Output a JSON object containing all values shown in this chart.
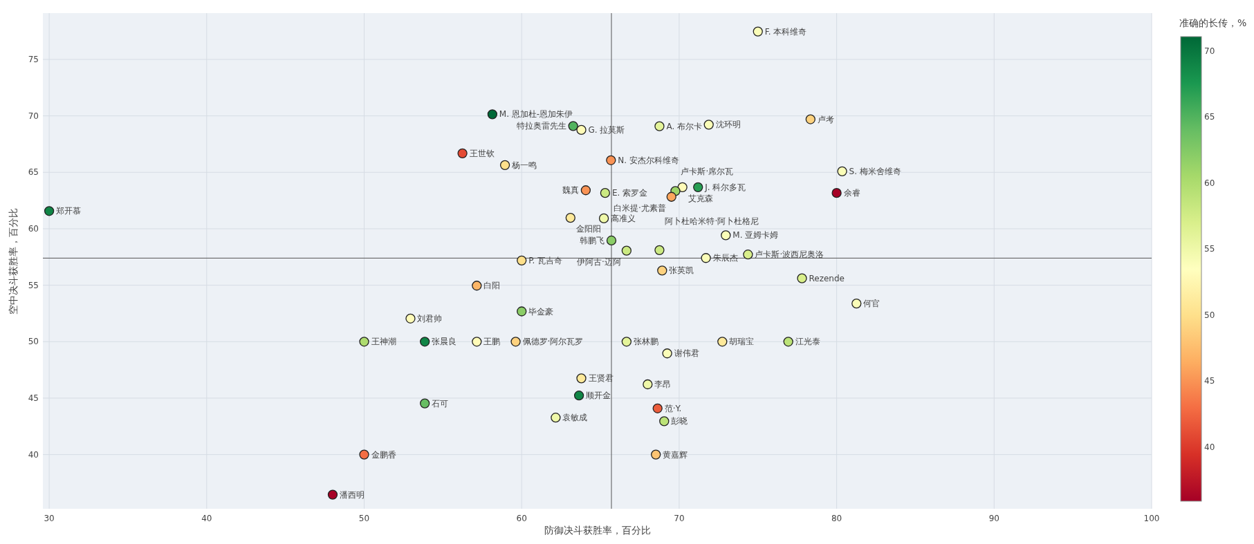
{
  "chart_data": {
    "type": "scatter",
    "xlabel": "防御决斗获胜率，百分比",
    "ylabel": "空中决斗获胜率，百分比",
    "clabel": "准确的长传，%",
    "x": [
      30.0,
      75.0,
      58.14,
      63.27,
      63.79,
      68.75,
      71.88,
      78.34,
      56.24,
      58.94,
      65.67,
      64.07,
      65.3,
      70.21,
      69.76,
      69.51,
      71.2,
      80.0,
      80.35,
      63.1,
      65.22,
      65.7,
      66.66,
      68.75,
      72.96,
      71.7,
      74.37,
      60.0,
      68.92,
      77.8,
      81.26,
      57.15,
      60.0,
      52.94,
      50.0,
      53.85,
      57.15,
      59.62,
      66.66,
      72.74,
      76.93,
      69.24,
      63.79,
      68.0,
      63.64,
      53.85,
      68.63,
      62.16,
      69.05,
      68.52,
      50.0,
      48.0
    ],
    "values": [
      61.57,
      77.47,
      70.14,
      69.1,
      68.76,
      69.08,
      69.22,
      69.7,
      66.68,
      65.64,
      66.07,
      63.41,
      63.17,
      63.68,
      63.34,
      62.83,
      63.68,
      63.17,
      65.09,
      60.97,
      60.92,
      58.96,
      58.06,
      58.11,
      59.42,
      57.41,
      57.72,
      57.19,
      56.3,
      55.61,
      53.38,
      54.96,
      52.68,
      52.05,
      50.0,
      50.0,
      50.0,
      50.0,
      50.0,
      50.0,
      50.0,
      48.96,
      46.75,
      46.22,
      45.23,
      44.53,
      44.09,
      43.27,
      42.95,
      40.0,
      40.0,
      36.45
    ],
    "cvalues": [
      69,
      54,
      71,
      65,
      53,
      56,
      54,
      49,
      41,
      50,
      45,
      45,
      58,
      53,
      61,
      46,
      67,
      36,
      54,
      51,
      55,
      62,
      58,
      58,
      54,
      54,
      57,
      50,
      49,
      57,
      54,
      47,
      62,
      53,
      60,
      69,
      53,
      49,
      56,
      51,
      59,
      54,
      51,
      55,
      69,
      64,
      42,
      55,
      59,
      48,
      43,
      36
    ],
    "annotations": [
      {
        "text": "郑开慕",
        "x": 30.0,
        "y": 61.57
      },
      {
        "text": "F. 本科维奇",
        "x": 75.0,
        "y": 77.47
      },
      {
        "text": "M. 恩加杜-恩加朱伊",
        "x": 58.14,
        "y": 70.14
      },
      {
        "text": "特拉奥雷先生",
        "x": 63.27,
        "y": 69.1
      },
      {
        "text": "G. 拉莫斯",
        "x": 63.79,
        "y": 68.76
      },
      {
        "text": "A. 布尔卡",
        "x": 68.75,
        "y": 69.08
      },
      {
        "text": "沈环明",
        "x": 71.88,
        "y": 69.22
      },
      {
        "text": "卢考",
        "x": 78.34,
        "y": 69.7
      },
      {
        "text": "王世钦",
        "x": 56.24,
        "y": 66.68
      },
      {
        "text": "杨一鸣",
        "x": 58.94,
        "y": 65.64
      },
      {
        "text": "N. 安杰尔科维奇",
        "x": 65.67,
        "y": 66.07
      },
      {
        "text": "魏真",
        "x": 64.07,
        "y": 63.41
      },
      {
        "text": "E. 索罗金",
        "x": 65.3,
        "y": 63.17
      },
      {
        "text": "艾克森",
        "x": 70.21,
        "y": 63.68
      },
      {
        "text": "卢卡斯·席尔瓦",
        "x": 69.76,
        "y": 63.34
      },
      {
        "text": "白米提·尤素普",
        "x": 69.51,
        "y": 62.83
      },
      {
        "text": "J. 科尔多瓦",
        "x": 71.2,
        "y": 63.68
      },
      {
        "text": "余睿",
        "x": 80.0,
        "y": 63.17
      },
      {
        "text": "S. 梅米舍维奇",
        "x": 80.35,
        "y": 65.09
      },
      {
        "text": "金阳阳",
        "x": 63.1,
        "y": 60.97
      },
      {
        "text": "高准义",
        "x": 65.22,
        "y": 60.92
      },
      {
        "text": "韩鹏飞",
        "x": 65.7,
        "y": 58.96
      },
      {
        "text": "伊阿古·迈阿",
        "x": 66.66,
        "y": 58.06
      },
      {
        "text": "阿卜杜哈米特·阿卜杜格尼",
        "x": 68.75,
        "y": 58.11
      },
      {
        "text": "M. 亚姆卡姆",
        "x": 72.96,
        "y": 59.42
      },
      {
        "text": "朱辰杰",
        "x": 71.7,
        "y": 57.41
      },
      {
        "text": "卢卡斯·波西尼奥洛",
        "x": 74.37,
        "y": 57.72
      },
      {
        "text": "P. 瓦吉奇",
        "x": 60.0,
        "y": 57.19
      },
      {
        "text": "张英凯",
        "x": 68.92,
        "y": 56.3
      },
      {
        "text": "Rezende",
        "x": 77.8,
        "y": 55.61
      },
      {
        "text": "何官",
        "x": 81.26,
        "y": 53.38
      },
      {
        "text": "白阳",
        "x": 57.15,
        "y": 54.96
      },
      {
        "text": "毕金豪",
        "x": 60.0,
        "y": 52.68
      },
      {
        "text": "刘君帅",
        "x": 52.94,
        "y": 52.05
      },
      {
        "text": "王神潮",
        "x": 50.0,
        "y": 50.0
      },
      {
        "text": "张晨良",
        "x": 53.85,
        "y": 50.0
      },
      {
        "text": "王鹏",
        "x": 57.15,
        "y": 50.0
      },
      {
        "text": "佩德罗·阿尔瓦罗",
        "x": 59.62,
        "y": 50.0
      },
      {
        "text": "张林鹏",
        "x": 66.66,
        "y": 50.0
      },
      {
        "text": "胡瑞宝",
        "x": 72.74,
        "y": 50.0
      },
      {
        "text": "江光泰",
        "x": 76.93,
        "y": 50.0
      },
      {
        "text": "谢伟君",
        "x": 69.24,
        "y": 48.96
      },
      {
        "text": "王贤君",
        "x": 63.79,
        "y": 46.75
      },
      {
        "text": "李昂",
        "x": 68.0,
        "y": 46.22
      },
      {
        "text": "顺开金",
        "x": 63.64,
        "y": 45.23
      },
      {
        "text": "石可",
        "x": 53.85,
        "y": 44.53
      },
      {
        "text": "范·Y.",
        "x": 68.63,
        "y": 44.09
      },
      {
        "text": "袁敏成",
        "x": 62.16,
        "y": 43.27
      },
      {
        "text": "彭晓",
        "x": 69.05,
        "y": 42.95
      },
      {
        "text": "黄嘉辉",
        "x": 68.52,
        "y": 40.0
      },
      {
        "text": "金鹏香",
        "x": 50.0,
        "y": 40.0
      },
      {
        "text": "潘西明",
        "x": 48.0,
        "y": 36.45
      }
    ],
    "xlim": [
      29.6,
      100
    ],
    "ylim": [
      35.2,
      79.1
    ],
    "xticks": [
      30,
      40,
      50,
      60,
      70,
      80,
      90,
      100
    ],
    "yticks": [
      40,
      45,
      50,
      55,
      60,
      65,
      70,
      75
    ],
    "clim": [
      35.9,
      71.1
    ],
    "cticks": [
      40,
      45,
      50,
      55,
      60,
      65,
      70
    ],
    "grid": true,
    "marker": "circle",
    "ref_lines": [
      {
        "axis": "x",
        "value": 65.7,
        "color": "#555555"
      },
      {
        "axis": "y",
        "value": 57.4,
        "color": "#555555"
      }
    ]
  }
}
